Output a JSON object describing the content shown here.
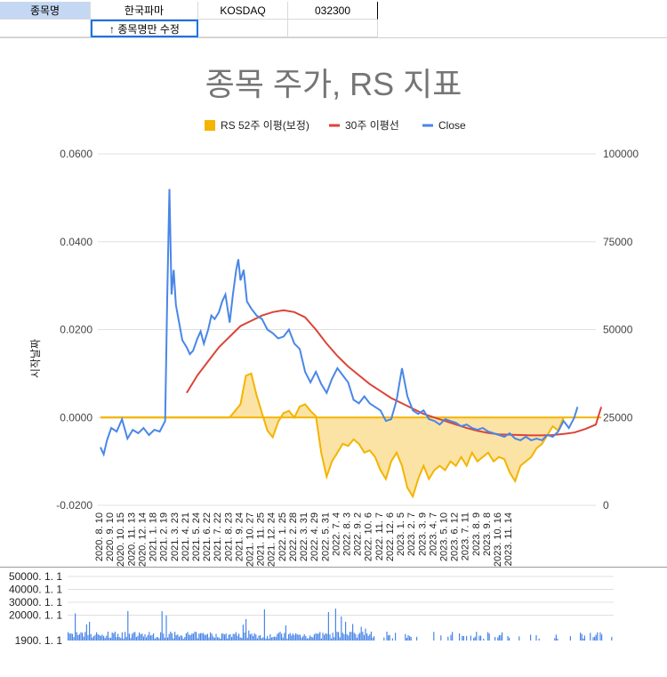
{
  "sheet": {
    "row1": {
      "label": "종목명",
      "name": "한국파마",
      "market": "KOSDAQ",
      "code": "032300"
    },
    "row2": {
      "note": "↑ 종목명만 수정"
    }
  },
  "colors": {
    "rs": "#f4b400",
    "rs_fill": "#fbe3a6",
    "ma": "#db4437",
    "close": "#4a86e8",
    "vol": "#4a86e8",
    "grid": "#e0e0e0",
    "title": "#757575"
  },
  "chart_data": [
    {
      "type": "line",
      "title": "종목 주가, RS 지표",
      "ylabel": "시작날짜",
      "legend_position": "top",
      "legend": [
        {
          "name": "RS 52주 이평(보정)",
          "marker": "square",
          "color": "#f4b400"
        },
        {
          "name": "30주 이평선",
          "marker": "line",
          "color": "#db4437"
        },
        {
          "name": "Close",
          "marker": "line",
          "color": "#4a86e8"
        }
      ],
      "grid": true,
      "x_ticks": [
        "2020. 8. 10",
        "2020. 9. 10",
        "2020. 10. 15",
        "2020. 11. 13",
        "2020. 12. 14",
        "2021. 1. 18",
        "2021. 2. 19",
        "2021. 3. 23",
        "2021. 4. 21",
        "2021. 5. 24",
        "2021. 6. 22",
        "2021. 7. 22",
        "2021. 8. 23",
        "2021. 9. 24",
        "2021. 10. 27",
        "2021. 11. 25",
        "2021. 12. 24",
        "2022. 1. 25",
        "2022. 2. 28",
        "2022. 3. 31",
        "2022. 4. 29",
        "2022. 5. 31",
        "2022. 7. 4",
        "2022. 8. 3",
        "2022. 9. 2",
        "2022. 10. 6",
        "2022. 11. 7",
        "2022. 12. 6",
        "2023. 1. 5",
        "2023. 2. 7",
        "2023. 3. 9",
        "2023. 4. 7",
        "2023. 5. 10",
        "2023. 6. 12",
        "2023. 7. 11",
        "2023. 8. 9",
        "2023. 9. 8",
        "2023. 10. 16",
        "2023. 11. 14"
      ],
      "y_left": {
        "ticks": [
          "0.0600",
          "0.0400",
          "0.0200",
          "0.0000",
          "-0.0200"
        ],
        "range": [
          -0.02,
          0.06
        ]
      },
      "y_right": {
        "ticks": [
          "100000",
          "75000",
          "50000",
          "25000",
          "0"
        ],
        "range": [
          0,
          100000
        ]
      },
      "series": [
        {
          "name": "RS 52주 이평(보정)",
          "axis": "left",
          "points": [
            [
              0,
              0
            ],
            [
              4,
              0
            ],
            [
              8,
              0
            ],
            [
              12,
              0
            ],
            [
              13,
              0.003
            ],
            [
              13.5,
              0.0095
            ],
            [
              14,
              0.01
            ],
            [
              14.5,
              0.005
            ],
            [
              15,
              0.001
            ],
            [
              15.5,
              -0.003
            ],
            [
              16,
              -0.0045
            ],
            [
              16.5,
              -0.001
            ],
            [
              17,
              0.001
            ],
            [
              17.5,
              0.0015
            ],
            [
              18,
              0
            ],
            [
              18.5,
              0.0025
            ],
            [
              19,
              0.003
            ],
            [
              19.5,
              0.0015
            ],
            [
              20,
              0.0003
            ],
            [
              20.5,
              -0.008
            ],
            [
              21,
              -0.0135
            ],
            [
              21.5,
              -0.01
            ],
            [
              22,
              -0.008
            ],
            [
              22.5,
              -0.006
            ],
            [
              23,
              -0.0065
            ],
            [
              23.5,
              -0.005
            ],
            [
              24,
              -0.006
            ],
            [
              24.5,
              -0.008
            ],
            [
              25,
              -0.0075
            ],
            [
              25.5,
              -0.009
            ],
            [
              26,
              -0.012
            ],
            [
              26.5,
              -0.014
            ],
            [
              27,
              -0.01
            ],
            [
              27.5,
              -0.008
            ],
            [
              28,
              -0.011
            ],
            [
              28.5,
              -0.016
            ],
            [
              29,
              -0.018
            ],
            [
              29.5,
              -0.014
            ],
            [
              30,
              -0.011
            ],
            [
              30.5,
              -0.014
            ],
            [
              31,
              -0.012
            ],
            [
              31.5,
              -0.011
            ],
            [
              32,
              -0.012
            ],
            [
              32.5,
              -0.01
            ],
            [
              33,
              -0.011
            ],
            [
              33.5,
              -0.009
            ],
            [
              34,
              -0.011
            ],
            [
              34.5,
              -0.008
            ],
            [
              35,
              -0.01
            ],
            [
              35.5,
              -0.009
            ],
            [
              36,
              -0.008
            ],
            [
              36.5,
              -0.01
            ],
            [
              37,
              -0.009
            ],
            [
              37.5,
              -0.0095
            ],
            [
              38,
              -0.0125
            ],
            [
              38.5,
              -0.0145
            ],
            [
              39,
              -0.011
            ],
            [
              39.5,
              -0.01
            ],
            [
              40,
              -0.009
            ],
            [
              40.5,
              -0.007
            ],
            [
              41,
              -0.006
            ],
            [
              41.5,
              -0.004
            ],
            [
              42,
              -0.002
            ],
            [
              42.5,
              -0.003
            ],
            [
              43,
              0
            ]
          ]
        },
        {
          "name": "30주 이평선",
          "axis": "right",
          "points": [
            [
              8,
              32000
            ],
            [
              9,
              37000
            ],
            [
              10,
              41000
            ],
            [
              11,
              45000
            ],
            [
              12,
              48000
            ],
            [
              13,
              51000
            ],
            [
              14,
              52500
            ],
            [
              15,
              54000
            ],
            [
              16,
              55000
            ],
            [
              17,
              55500
            ],
            [
              18,
              55000
            ],
            [
              19,
              53500
            ],
            [
              20,
              50000
            ],
            [
              21,
              46000
            ],
            [
              22,
              42500
            ],
            [
              23,
              39500
            ],
            [
              24,
              37000
            ],
            [
              25,
              34500
            ],
            [
              26,
              32500
            ],
            [
              27,
              30500
            ],
            [
              28,
              29000
            ],
            [
              29,
              27500
            ],
            [
              30,
              26000
            ],
            [
              31,
              25000
            ],
            [
              32,
              24000
            ],
            [
              33,
              23000
            ],
            [
              34,
              22000
            ],
            [
              35,
              21200
            ],
            [
              36,
              20600
            ],
            [
              37,
              20200
            ],
            [
              38,
              20100
            ],
            [
              39,
              20000
            ],
            [
              40,
              19900
            ],
            [
              41,
              19900
            ],
            [
              42,
              20000
            ],
            [
              43,
              20300
            ],
            [
              44,
              20700
            ],
            [
              45,
              21700
            ],
            [
              46,
              23000
            ],
            [
              46.5,
              28000
            ]
          ]
        },
        {
          "name": "Close",
          "axis": "right",
          "points": [
            [
              0,
              16500
            ],
            [
              0.3,
              14500
            ],
            [
              0.6,
              18500
            ],
            [
              1,
              22000
            ],
            [
              1.5,
              21000
            ],
            [
              2,
              24500
            ],
            [
              2.5,
              19000
            ],
            [
              3,
              21500
            ],
            [
              3.5,
              20500
            ],
            [
              4,
              22000
            ],
            [
              4.5,
              20000
            ],
            [
              5,
              21500
            ],
            [
              5.5,
              21000
            ],
            [
              6,
              24000
            ],
            [
              6.2,
              60000
            ],
            [
              6.4,
              90000
            ],
            [
              6.6,
              60000
            ],
            [
              6.8,
              67000
            ],
            [
              7,
              57000
            ],
            [
              7.3,
              52000
            ],
            [
              7.6,
              47000
            ],
            [
              8,
              45000
            ],
            [
              8.3,
              43000
            ],
            [
              8.6,
              44000
            ],
            [
              9,
              47500
            ],
            [
              9.3,
              49500
            ],
            [
              9.6,
              46000
            ],
            [
              10,
              50000
            ],
            [
              10.3,
              54000
            ],
            [
              10.6,
              53000
            ],
            [
              11,
              55000
            ],
            [
              11.3,
              58000
            ],
            [
              11.6,
              60000
            ],
            [
              12,
              52000
            ],
            [
              12.3,
              60000
            ],
            [
              12.6,
              67000
            ],
            [
              12.8,
              70000
            ],
            [
              13,
              64000
            ],
            [
              13.3,
              67000
            ],
            [
              13.6,
              58000
            ],
            [
              14,
              56000
            ],
            [
              14.5,
              54000
            ],
            [
              15,
              53000
            ],
            [
              15.5,
              50000
            ],
            [
              16,
              49000
            ],
            [
              16.5,
              47500
            ],
            [
              17,
              48000
            ],
            [
              17.5,
              50000
            ],
            [
              18,
              46000
            ],
            [
              18.5,
              44500
            ],
            [
              19,
              38000
            ],
            [
              19.5,
              35000
            ],
            [
              20,
              38000
            ],
            [
              20.5,
              34500
            ],
            [
              21,
              32000
            ],
            [
              21.5,
              36000
            ],
            [
              22,
              39000
            ],
            [
              22.5,
              37000
            ],
            [
              23,
              35000
            ],
            [
              23.5,
              30000
            ],
            [
              24,
              29000
            ],
            [
              24.5,
              31000
            ],
            [
              25,
              29000
            ],
            [
              25.5,
              28000
            ],
            [
              26,
              27000
            ],
            [
              26.5,
              24000
            ],
            [
              27,
              24500
            ],
            [
              27.5,
              30000
            ],
            [
              28,
              39000
            ],
            [
              28.5,
              31000
            ],
            [
              29,
              27000
            ],
            [
              29.5,
              26000
            ],
            [
              30,
              27000
            ],
            [
              30.5,
              24500
            ],
            [
              31,
              24000
            ],
            [
              31.5,
              23000
            ],
            [
              32,
              24500
            ],
            [
              32.5,
              24000
            ],
            [
              33,
              23500
            ],
            [
              33.5,
              22500
            ],
            [
              34,
              23000
            ],
            [
              34.5,
              22000
            ],
            [
              35,
              21500
            ],
            [
              35.5,
              22000
            ],
            [
              36,
              21000
            ],
            [
              36.5,
              20500
            ],
            [
              37,
              20000
            ],
            [
              37.5,
              19500
            ],
            [
              38,
              20500
            ],
            [
              38.5,
              19000
            ],
            [
              39,
              18500
            ],
            [
              39.5,
              19500
            ],
            [
              40,
              18500
            ],
            [
              40.5,
              19000
            ],
            [
              41,
              18500
            ],
            [
              41.5,
              20000
            ],
            [
              42,
              19500
            ],
            [
              42.5,
              21000
            ],
            [
              43,
              24000
            ],
            [
              43.5,
              22000
            ],
            [
              44,
              25000
            ],
            [
              44.3,
              28000
            ]
          ]
        }
      ]
    },
    {
      "type": "bar",
      "y_ticks": [
        "50000. 1. 1",
        "40000. 1. 1",
        "30000. 1. 1",
        "20000. 1. 1",
        "1900. 1. 1"
      ],
      "baseline_label": "1900. 1. 1",
      "series": [
        {
          "name": "volume",
          "color": "#4a86e8"
        }
      ]
    }
  ]
}
